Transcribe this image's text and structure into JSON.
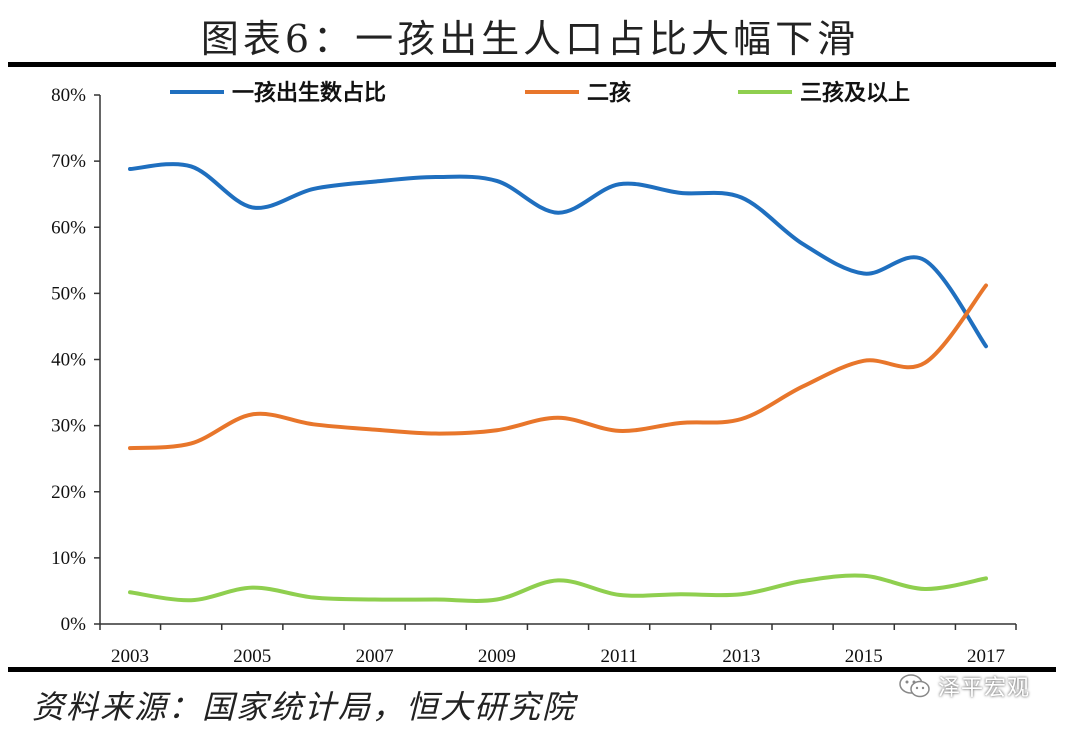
{
  "header": {
    "title": "图表6：一孩出生人口占比大幅下滑"
  },
  "footer": {
    "source": "资料来源：国家统计局，恒大研究院",
    "watermark": "泽平宏观"
  },
  "chart_data": {
    "type": "line",
    "title": "图表6：一孩出生人口占比大幅下滑",
    "x": [
      2003,
      2004,
      2005,
      2006,
      2007,
      2008,
      2009,
      2010,
      2011,
      2012,
      2013,
      2014,
      2015,
      2016,
      2017
    ],
    "x_tick_labels": [
      "2003",
      "2005",
      "2007",
      "2009",
      "2011",
      "2013",
      "2015",
      "2017"
    ],
    "y_tick_labels": [
      "0%",
      "10%",
      "20%",
      "30%",
      "40%",
      "50%",
      "60%",
      "70%",
      "80%"
    ],
    "ylim": [
      0,
      80
    ],
    "xlabel": "",
    "ylabel": "",
    "legend_position": "top",
    "grid": false,
    "series": [
      {
        "name": "一孩出生数占比",
        "color": "#1f6fbf",
        "values": [
          68.8,
          69.2,
          63.0,
          65.8,
          66.9,
          67.6,
          67.0,
          62.2,
          66.5,
          65.2,
          64.5,
          57.5,
          53.0,
          55.0,
          42.0
        ]
      },
      {
        "name": "二孩",
        "color": "#e8762b",
        "values": [
          26.6,
          27.3,
          31.7,
          30.2,
          29.4,
          28.8,
          29.3,
          31.2,
          29.2,
          30.4,
          31.0,
          35.9,
          39.8,
          39.5,
          51.2
        ]
      },
      {
        "name": "三孩及以上",
        "color": "#8fcf4f",
        "values": [
          4.8,
          3.6,
          5.5,
          4.0,
          3.7,
          3.7,
          3.7,
          6.6,
          4.4,
          4.5,
          4.5,
          6.5,
          7.3,
          5.3,
          6.9
        ]
      }
    ]
  }
}
